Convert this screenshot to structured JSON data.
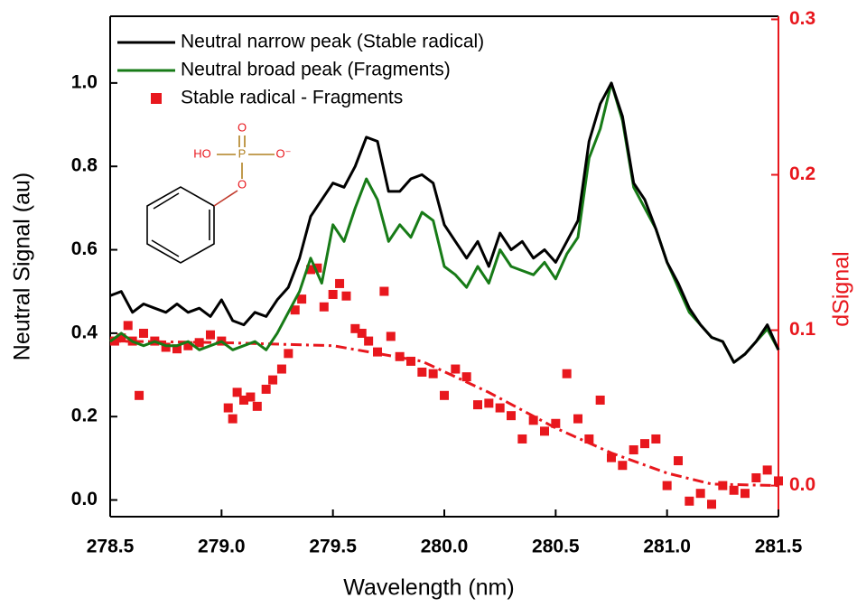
{
  "chart_data": {
    "type": "line",
    "xlabel": "Wavelength (nm)",
    "ylabel": "Neutral Signal (au)",
    "y2label": "dSignal",
    "xlim": [
      278.5,
      281.5
    ],
    "xticks": [
      278.5,
      {
        "value": 279,
        "label": "279.0"
      },
      279.5,
      {
        "value": 280,
        "label": "280.0"
      },
      280.5,
      {
        "value": 281,
        "label": "281.0"
      },
      281.5
    ],
    "ylim": [
      -0.04,
      1.16
    ],
    "yticks": [
      {
        "value": 0,
        "label": "0.0"
      },
      0.2,
      0.4,
      0.6,
      0.8,
      {
        "value": 1,
        "label": "1.0"
      }
    ],
    "y2lim": [
      -0.02,
      0.302
    ],
    "y2ticks": [
      {
        "value": 0,
        "label": "0.0"
      },
      0.1,
      0.2,
      0.3
    ],
    "y2color": "#e8171d",
    "legend": "upper left",
    "annotations": [
      "HO",
      "P",
      "O",
      "O",
      "O⁻"
    ],
    "series": [
      {
        "name": "Neutral narrow peak (Stable radical)",
        "color": "#000000",
        "style": "line",
        "x": [
          278.5,
          278.55,
          278.6,
          278.65,
          278.7,
          278.75,
          278.8,
          278.85,
          278.9,
          278.95,
          279,
          279.05,
          279.1,
          279.15,
          279.2,
          279.25,
          279.3,
          279.35,
          279.4,
          279.45,
          279.5,
          279.55,
          279.6,
          279.65,
          279.7,
          279.75,
          279.8,
          279.85,
          279.9,
          279.95,
          280,
          280.05,
          280.1,
          280.15,
          280.2,
          280.25,
          280.3,
          280.35,
          280.4,
          280.45,
          280.5,
          280.55,
          280.6,
          280.65,
          280.7,
          280.75,
          280.8,
          280.85,
          280.9,
          280.95,
          281,
          281.05,
          281.1,
          281.15,
          281.2,
          281.25,
          281.3,
          281.35,
          281.4,
          281.45,
          281.5
        ],
        "values": [
          0.49,
          0.5,
          0.45,
          0.47,
          0.46,
          0.45,
          0.47,
          0.45,
          0.46,
          0.44,
          0.48,
          0.43,
          0.42,
          0.45,
          0.44,
          0.48,
          0.51,
          0.58,
          0.68,
          0.72,
          0.76,
          0.75,
          0.8,
          0.87,
          0.86,
          0.74,
          0.74,
          0.77,
          0.78,
          0.76,
          0.66,
          0.62,
          0.58,
          0.62,
          0.56,
          0.64,
          0.6,
          0.62,
          0.58,
          0.6,
          0.57,
          0.62,
          0.67,
          0.86,
          0.95,
          1.0,
          0.92,
          0.76,
          0.72,
          0.65,
          0.57,
          0.52,
          0.46,
          0.42,
          0.39,
          0.38,
          0.33,
          0.35,
          0.38,
          0.42,
          0.36
        ]
      },
      {
        "name": "Neutral broad peak (Fragments)",
        "color": "#177b17",
        "style": "line",
        "x": [
          278.5,
          278.55,
          278.6,
          278.65,
          278.7,
          278.75,
          278.8,
          278.85,
          278.9,
          278.95,
          279,
          279.05,
          279.1,
          279.15,
          279.2,
          279.25,
          279.3,
          279.35,
          279.4,
          279.45,
          279.5,
          279.55,
          279.6,
          279.65,
          279.7,
          279.75,
          279.8,
          279.85,
          279.9,
          279.95,
          280,
          280.05,
          280.1,
          280.15,
          280.2,
          280.25,
          280.3,
          280.35,
          280.4,
          280.45,
          280.5,
          280.55,
          280.6,
          280.65,
          280.7,
          280.75,
          280.8,
          280.85,
          280.9,
          280.95,
          281,
          281.05,
          281.1,
          281.15,
          281.2,
          281.25,
          281.3,
          281.35,
          281.4,
          281.45,
          281.5
        ],
        "values": [
          0.38,
          0.4,
          0.38,
          0.37,
          0.38,
          0.37,
          0.37,
          0.38,
          0.36,
          0.37,
          0.38,
          0.36,
          0.37,
          0.38,
          0.36,
          0.4,
          0.45,
          0.5,
          0.58,
          0.52,
          0.66,
          0.62,
          0.7,
          0.77,
          0.72,
          0.62,
          0.66,
          0.63,
          0.69,
          0.67,
          0.56,
          0.54,
          0.51,
          0.56,
          0.52,
          0.6,
          0.56,
          0.55,
          0.54,
          0.57,
          0.53,
          0.59,
          0.63,
          0.82,
          0.89,
          1.0,
          0.91,
          0.75,
          0.7,
          0.65,
          0.57,
          0.51,
          0.45,
          0.42,
          0.39,
          0.38,
          0.33,
          0.35,
          0.38,
          0.41,
          0.36
        ]
      },
      {
        "name": "Stable radical - Fragments",
        "color": "#e8171d",
        "style": "scatter",
        "axis": "y2",
        "x": [
          278.52,
          278.55,
          278.58,
          278.6,
          278.63,
          278.65,
          278.7,
          278.75,
          278.8,
          278.85,
          278.9,
          278.95,
          279,
          279.03,
          279.05,
          279.07,
          279.1,
          279.13,
          279.16,
          279.2,
          279.23,
          279.27,
          279.3,
          279.33,
          279.36,
          279.4,
          279.43,
          279.46,
          279.5,
          279.53,
          279.56,
          279.6,
          279.63,
          279.66,
          279.7,
          279.73,
          279.76,
          279.8,
          279.85,
          279.9,
          279.95,
          280,
          280.05,
          280.1,
          280.15,
          280.2,
          280.25,
          280.3,
          280.35,
          280.4,
          280.45,
          280.5,
          280.55,
          280.6,
          280.65,
          280.7,
          280.75,
          280.8,
          280.85,
          280.9,
          280.95,
          281,
          281.05,
          281.1,
          281.15,
          281.2,
          281.25,
          281.3,
          281.35,
          281.4,
          281.45,
          281.5
        ],
        "values": [
          0.093,
          0.095,
          0.103,
          0.093,
          0.058,
          0.098,
          0.093,
          0.089,
          0.088,
          0.09,
          0.092,
          0.097,
          0.093,
          0.05,
          0.043,
          0.06,
          0.055,
          0.057,
          0.051,
          0.062,
          0.068,
          0.075,
          0.085,
          0.113,
          0.12,
          0.139,
          0.14,
          0.115,
          0.123,
          0.13,
          0.122,
          0.101,
          0.098,
          0.093,
          0.086,
          0.125,
          0.096,
          0.083,
          0.08,
          0.073,
          0.072,
          0.058,
          0.075,
          0.07,
          0.052,
          0.053,
          0.05,
          0.045,
          0.03,
          0.042,
          0.035,
          0.04,
          0.072,
          0.043,
          0.03,
          0.055,
          0.018,
          0.013,
          0.023,
          0.027,
          0.03,
          0.0,
          0.016,
          -0.01,
          -0.005,
          -0.012,
          0.0,
          -0.003,
          -0.005,
          0.005,
          0.01,
          0.003
        ]
      },
      {
        "color": "#e8171d",
        "style": "dashdot",
        "axis": "y2",
        "x": [
          278.5,
          279.0,
          279.5,
          279.9,
          280.2,
          280.5,
          280.75,
          281.0,
          281.2,
          281.5
        ],
        "values": [
          0.093,
          0.092,
          0.09,
          0.08,
          0.06,
          0.037,
          0.021,
          0.008,
          0.001,
          0.0
        ]
      }
    ]
  }
}
